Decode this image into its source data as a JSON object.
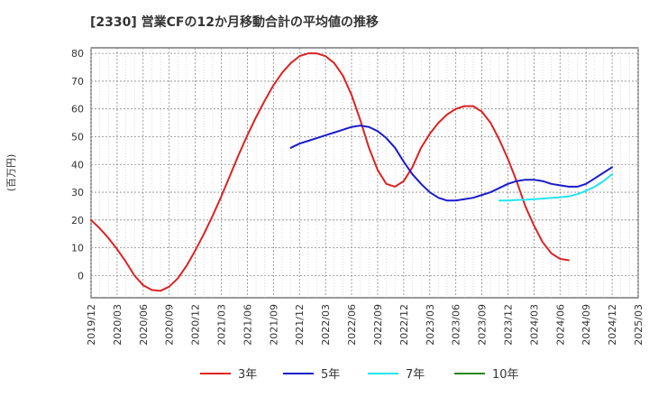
{
  "chart_data": {
    "type": "line",
    "title": "[2330]  営業CFの12か月移動合計の平均値の推移",
    "ylabel": "(百万円)",
    "xlabel": "",
    "ylim": [
      -8,
      82
    ],
    "yticks": [
      0,
      10,
      20,
      30,
      40,
      50,
      60,
      70,
      80
    ],
    "xlim": [
      "2019-12",
      "2025-03"
    ],
    "xticks": [
      "2019/12",
      "2020/03",
      "2020/06",
      "2020/09",
      "2020/12",
      "2021/03",
      "2021/06",
      "2021/09",
      "2021/12",
      "2022/03",
      "2022/06",
      "2022/09",
      "2022/12",
      "2023/03",
      "2023/06",
      "2023/09",
      "2023/12",
      "2024/03",
      "2024/06",
      "2024/09",
      "2024/12",
      "2025/03"
    ],
    "grid": true,
    "legend_position": "bottom",
    "series": [
      {
        "name": "3年",
        "color": "#dd2222",
        "x": [
          "2019-12",
          "2020-01",
          "2020-02",
          "2020-03",
          "2020-04",
          "2020-05",
          "2020-06",
          "2020-07",
          "2020-08",
          "2020-09",
          "2020-10",
          "2020-11",
          "2020-12",
          "2021-01",
          "2021-02",
          "2021-03",
          "2021-04",
          "2021-05",
          "2021-06",
          "2021-07",
          "2021-08",
          "2021-09",
          "2021-10",
          "2021-11",
          "2021-12",
          "2022-01",
          "2022-02",
          "2022-03",
          "2022-04",
          "2022-05",
          "2022-06",
          "2022-07",
          "2022-08",
          "2022-09",
          "2022-10",
          "2022-11",
          "2022-12",
          "2023-01",
          "2023-02",
          "2023-03",
          "2023-04",
          "2023-05",
          "2023-06",
          "2023-07",
          "2023-08",
          "2023-09",
          "2023-10",
          "2023-11",
          "2023-12",
          "2024-01",
          "2024-02",
          "2024-03",
          "2024-04",
          "2024-05",
          "2024-06",
          "2024-07",
          "2024-08",
          "2024-09",
          "2024-10",
          "2024-11",
          "2024-12"
        ],
        "values": [
          20,
          17,
          13.5,
          9.5,
          5,
          0,
          -3.5,
          -5.2,
          -5.5,
          -4,
          -1,
          3.5,
          9,
          15,
          21.5,
          28.5,
          36,
          43.5,
          50.5,
          57,
          63,
          68.5,
          73,
          76.5,
          79,
          80,
          80,
          79,
          76.5,
          72,
          65,
          56,
          46,
          38,
          33,
          32,
          34,
          39,
          46,
          51,
          55,
          58,
          60,
          61,
          61,
          59,
          55,
          49,
          42,
          34,
          25,
          18,
          12,
          8,
          6,
          5.5,
          null,
          null,
          null,
          null,
          null
        ],
        "display_values": [
          20,
          17,
          13.5,
          9.5,
          5,
          0,
          -3.5,
          -5.2,
          -5.5,
          -4,
          -1,
          3.5,
          9,
          15,
          21.5,
          28.5,
          36,
          43.5,
          50.5,
          57,
          63,
          68.5,
          73,
          76.5,
          79,
          80,
          80,
          79,
          76.5,
          72,
          65,
          56,
          46,
          38,
          33,
          32,
          34,
          39,
          46,
          51,
          55,
          58,
          60,
          61,
          61,
          59,
          55,
          49,
          42,
          34,
          25,
          18,
          12,
          8,
          6,
          5.5
        ]
      },
      {
        "name": "5年",
        "color": "#1a1acc",
        "x": [
          "2021-11",
          "2021-12",
          "2022-01",
          "2022-02",
          "2022-03",
          "2022-04",
          "2022-05",
          "2022-06",
          "2022-07",
          "2022-08",
          "2022-09",
          "2022-10",
          "2022-11",
          "2022-12",
          "2023-01",
          "2023-02",
          "2023-03",
          "2023-04",
          "2023-05",
          "2023-06",
          "2023-07",
          "2023-08",
          "2023-09",
          "2023-10",
          "2023-11",
          "2023-12",
          "2024-01",
          "2024-02",
          "2024-03",
          "2024-04",
          "2024-05",
          "2024-06",
          "2024-07",
          "2024-08",
          "2024-09",
          "2024-10",
          "2024-11",
          "2024-12"
        ],
        "values": [
          46,
          47.5,
          48.5,
          49.5,
          50.5,
          51.5,
          52.5,
          53.5,
          54,
          53.5,
          52,
          49.5,
          46,
          41,
          36.5,
          33,
          30,
          28,
          27,
          27,
          27.5,
          28,
          29,
          30,
          31.5,
          33,
          34,
          34.5,
          34.5,
          34,
          33,
          32.5,
          32,
          32,
          33,
          35,
          37,
          39
        ]
      },
      {
        "name": "7年",
        "color": "#22e6f0",
        "x": [
          "2023-11",
          "2023-12",
          "2024-01",
          "2024-02",
          "2024-03",
          "2024-04",
          "2024-05",
          "2024-06",
          "2024-07",
          "2024-08",
          "2024-09",
          "2024-10",
          "2024-11",
          "2024-12"
        ],
        "values": [
          27,
          27,
          27.2,
          27.3,
          27.5,
          27.7,
          28,
          28.2,
          28.5,
          29.3,
          30.5,
          32,
          34,
          36.5
        ]
      },
      {
        "name": "10年",
        "color": "#228822",
        "x": [],
        "values": []
      }
    ]
  }
}
